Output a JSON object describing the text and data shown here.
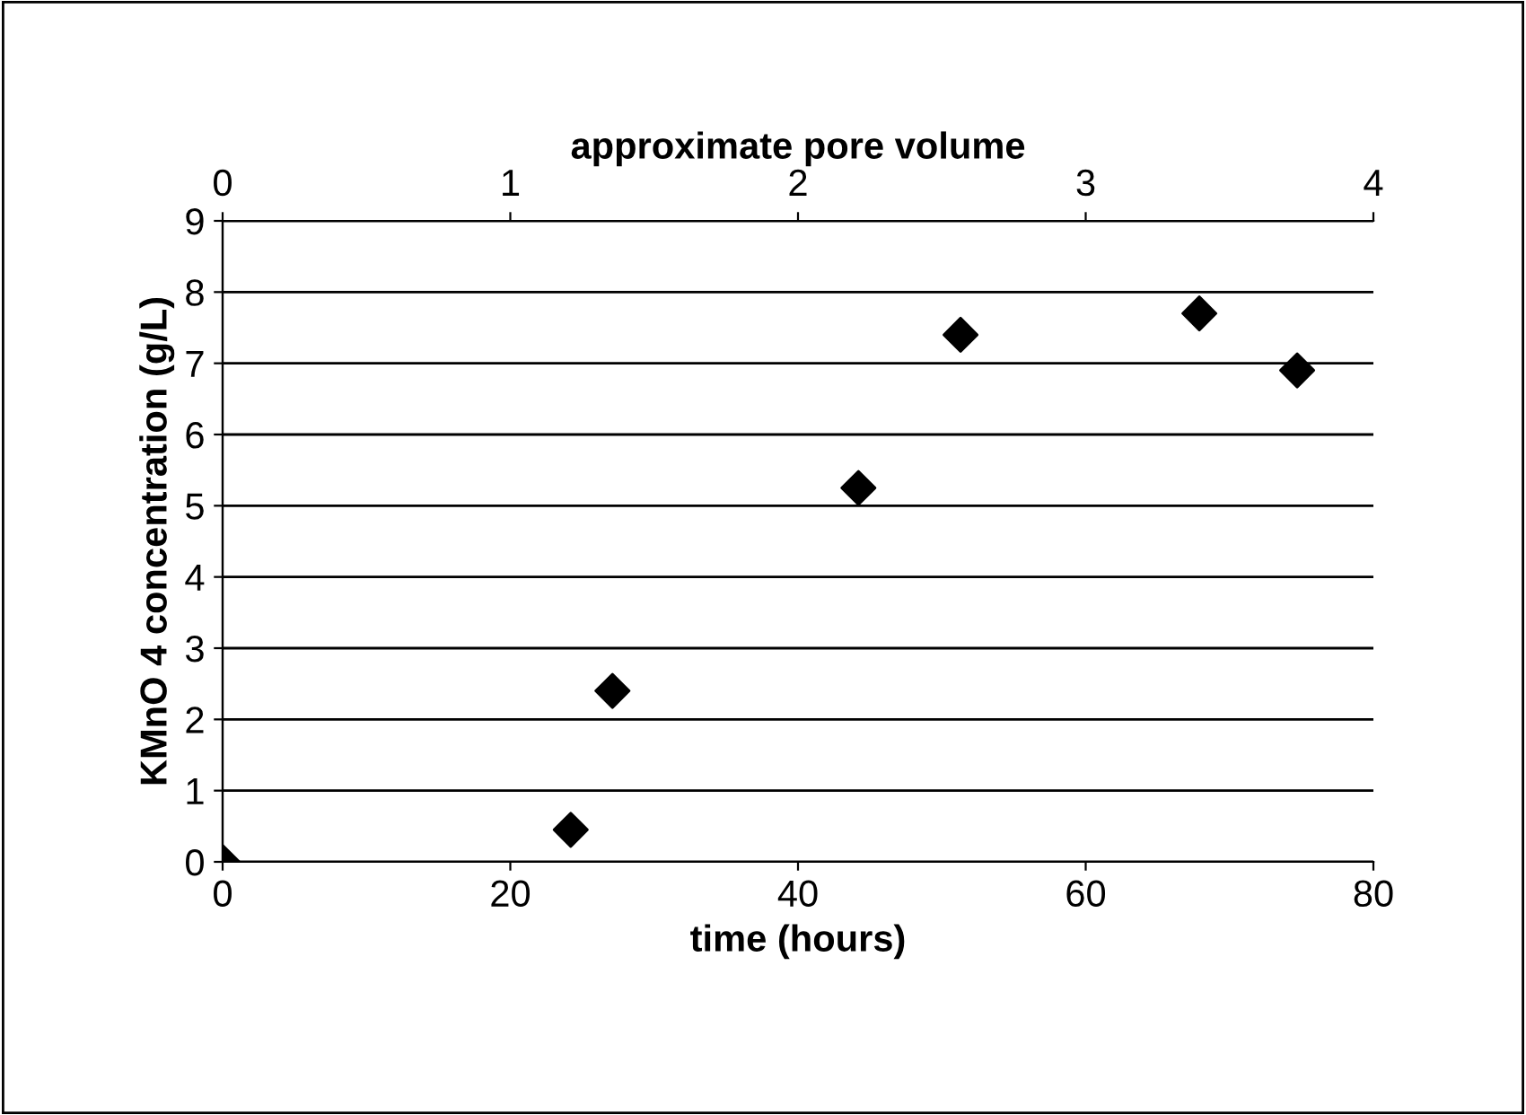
{
  "chart_data": {
    "type": "scatter",
    "xlabel": "time (hours)",
    "ylabel": "KMnO 4 concentration (g/L)",
    "x2label": "approximate pore volume",
    "x": [
      0,
      24.2,
      27.1,
      44.2,
      51.3,
      67.9,
      74.7
    ],
    "series": [
      {
        "color": "#000000",
        "values": [
          0.0,
          0.45,
          2.4,
          5.25,
          7.4,
          7.7,
          6.9
        ]
      }
    ],
    "xlim": [
      0,
      80
    ],
    "xticks": [
      0,
      20,
      40,
      60,
      80
    ],
    "x2lim": [
      0,
      4
    ],
    "x2ticks": [
      0,
      1,
      2,
      3,
      4
    ],
    "ylim": [
      0,
      9
    ],
    "yticks": [
      0,
      1,
      2,
      3,
      4,
      5,
      6,
      7,
      8,
      9
    ],
    "grid": "y",
    "marker": "diamond"
  }
}
